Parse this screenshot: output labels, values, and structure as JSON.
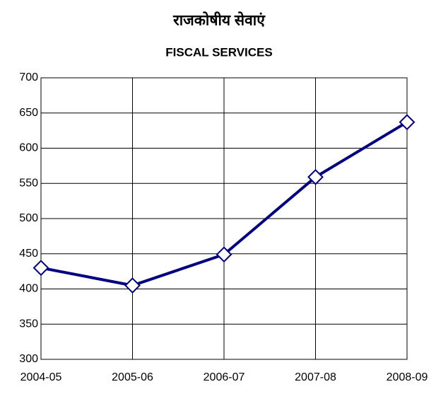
{
  "chart_data": {
    "type": "line",
    "title": "राजकोषीय सेवाएं",
    "subtitle": "FISCAL SERVICES",
    "categories": [
      "2004-05",
      "2005-06",
      "2006-07",
      "2007-08",
      "2008-09"
    ],
    "series": [
      {
        "color": "#000080",
        "values": [
          430,
          405,
          449,
          559,
          637
        ]
      }
    ],
    "ylim": [
      300,
      700
    ],
    "yticks": [
      300,
      350,
      400,
      450,
      500,
      550,
      600,
      650,
      700
    ],
    "grid": true
  }
}
